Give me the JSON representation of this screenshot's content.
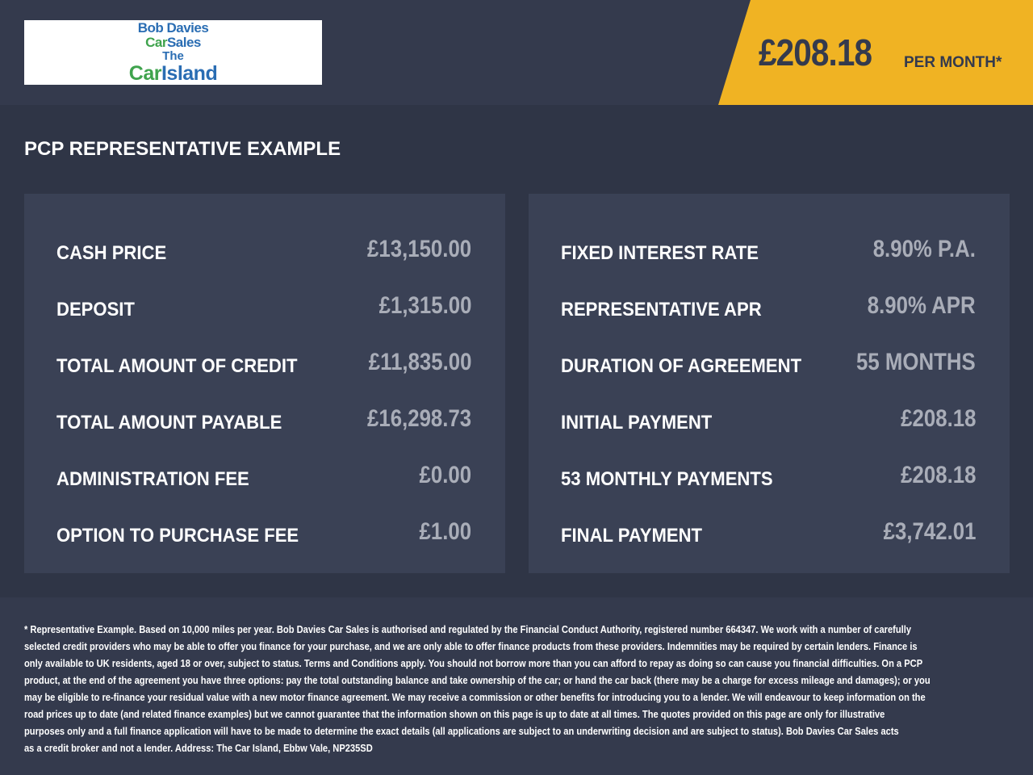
{
  "logo": {
    "line1": "Bob Davies",
    "line2a": "Car",
    "line2b": "Sales",
    "line3": "The",
    "line4a": "Car",
    "line4b": "Island"
  },
  "header": {
    "monthly_price": "£208.18",
    "per_month": "PER MONTH*"
  },
  "colors": {
    "accent": "#f0b323",
    "background": "#2f3546",
    "panel": "#3a4155",
    "logo_blue": "#2a6db3",
    "logo_green": "#3fa34d"
  },
  "section_title": "PCP REPRESENTATIVE EXAMPLE",
  "left_panel": [
    {
      "label": "CASH PRICE",
      "value": "£13,150.00"
    },
    {
      "label": "DEPOSIT",
      "value": "£1,315.00"
    },
    {
      "label": "TOTAL AMOUNT OF CREDIT",
      "value": "£11,835.00"
    },
    {
      "label": "TOTAL AMOUNT PAYABLE",
      "value": "£16,298.73"
    },
    {
      "label": "ADMINISTRATION FEE",
      "value": "£0.00"
    },
    {
      "label": "OPTION TO PURCHASE FEE",
      "value": "£1.00"
    }
  ],
  "right_panel": [
    {
      "label": "FIXED INTEREST RATE",
      "value": "8.90% P.A."
    },
    {
      "label": "REPRESENTATIVE APR",
      "value": "8.90% APR"
    },
    {
      "label": "DURATION OF AGREEMENT",
      "value": "55 MONTHS"
    },
    {
      "label": "INITIAL PAYMENT",
      "value": "£208.18"
    },
    {
      "label": "53 MONTHLY PAYMENTS",
      "value": "£208.18"
    },
    {
      "label": "FINAL PAYMENT",
      "value": "£3,742.01"
    }
  ],
  "disclaimer_lines": [
    "* Representative Example. Based on 10,000 miles per year. Bob Davies Car Sales is authorised and regulated by the Financial Conduct Authority, registered number 664347. We work with a number of carefully",
    "selected credit providers who may be able to offer you finance for your purchase, and we are only able to offer finance products from these providers. Indemnities may be required by certain lenders. Finance is",
    "only available to UK residents, aged 18 or over, subject to status. Terms and Conditions apply. You should not borrow more than you can afford to repay as doing so can cause you financial difficulties. On a PCP",
    "product, at the end of the agreement you have three options: pay the total outstanding balance and take ownership of the car; or hand the car back (there may be a charge for excess mileage and damages); or you",
    "may be eligible to re-finance your residual value with a new motor finance agreement. We may receive a commission or other benefits for introducing you to a lender. We will endeavour to keep information on the",
    "road prices up to date (and related finance examples) but we cannot guarantee that the information shown on this page is up to date at all times. The quotes provided on this page are only for illustrative",
    "purposes only and a full finance application will have to be made to determine the exact details (all applications are subject to an underwriting decision and are subject to status). Bob Davies Car Sales acts",
    "as a credit broker and not a lender. Address: The Car Island, Ebbw Vale, NP235SD"
  ]
}
